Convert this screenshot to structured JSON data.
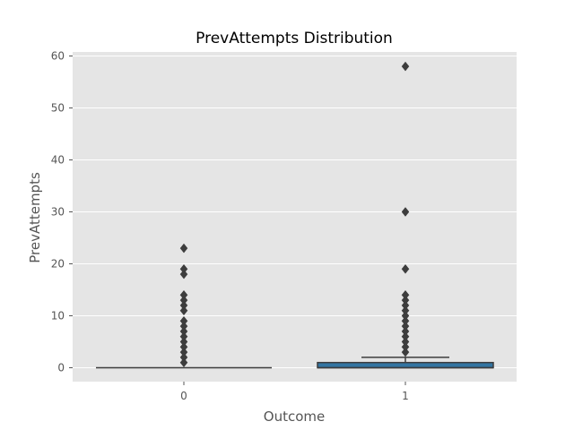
{
  "chart_data": {
    "type": "box",
    "title": "PrevAttempts Distribution",
    "xlabel": "Outcome",
    "ylabel": "PrevAttempts",
    "categories": [
      "0",
      "1"
    ],
    "ylim": [
      -3,
      61
    ],
    "yticks": [
      0,
      10,
      20,
      30,
      40,
      50,
      60
    ],
    "grid": true,
    "background": "#e5e5e5",
    "grid_color": "#ffffff",
    "line_color": "#3d3d3d",
    "boxes": [
      {
        "category": "0",
        "fill": "#3274a1",
        "q1": 0,
        "median": 0,
        "q3": 0,
        "whisker_low": 0,
        "whisker_high": 0,
        "outliers": [
          1,
          2,
          3,
          4,
          5,
          6,
          7,
          8,
          9,
          11,
          12,
          13,
          14,
          18,
          19,
          23
        ]
      },
      {
        "category": "1",
        "fill": "#3274a1",
        "q1": 0,
        "median": 0,
        "q3": 1,
        "whisker_low": 0,
        "whisker_high": 2,
        "outliers": [
          3,
          4,
          5,
          6,
          7,
          8,
          9,
          10,
          11,
          12,
          13,
          14,
          19,
          30,
          58
        ]
      }
    ]
  }
}
